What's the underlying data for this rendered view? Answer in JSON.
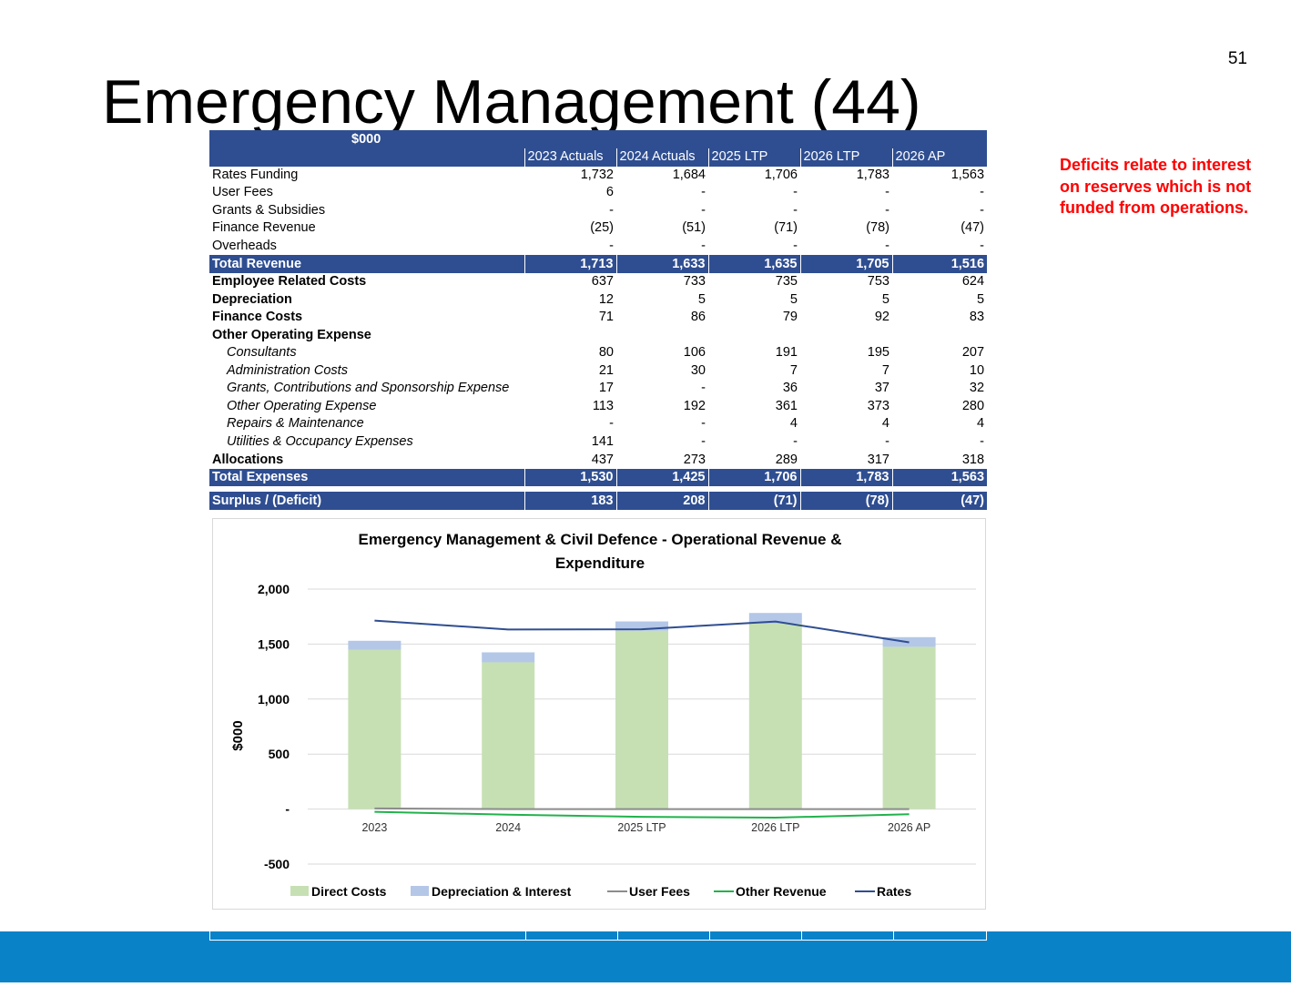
{
  "page_number": "51",
  "title": "Emergency Management (44)",
  "note": "Deficits relate to interest on reserves which is not funded from operations.",
  "table": {
    "unit_label": "$000",
    "columns": [
      "2023 Actuals",
      "2024 Actuals",
      "2025 LTP",
      "2026 LTP",
      "2026 AP"
    ],
    "rows": [
      {
        "label": "Rates Funding",
        "style": "normal",
        "values": [
          "1,732",
          "1,684",
          "1,706",
          "1,783",
          "1,563"
        ]
      },
      {
        "label": "User Fees",
        "style": "normal",
        "values": [
          "6",
          "-",
          "-",
          "-",
          "-"
        ]
      },
      {
        "label": "Grants & Subsidies",
        "style": "normal",
        "values": [
          "-",
          "-",
          "-",
          "-",
          "-"
        ]
      },
      {
        "label": "Finance Revenue",
        "style": "normal",
        "values": [
          "(25)",
          "(51)",
          "(71)",
          "(78)",
          "(47)"
        ]
      },
      {
        "label": "Overheads",
        "style": "normal",
        "values": [
          "-",
          "-",
          "-",
          "-",
          "-"
        ]
      },
      {
        "label": "Total Revenue",
        "style": "total",
        "values": [
          "1,713",
          "1,633",
          "1,635",
          "1,705",
          "1,516"
        ]
      },
      {
        "label": "Employee Related Costs",
        "style": "bold",
        "values": [
          "637",
          "733",
          "735",
          "753",
          "624"
        ]
      },
      {
        "label": "Depreciation",
        "style": "bold",
        "values": [
          "12",
          "5",
          "5",
          "5",
          "5"
        ]
      },
      {
        "label": "Finance Costs",
        "style": "bold",
        "values": [
          "71",
          "86",
          "79",
          "92",
          "83"
        ]
      },
      {
        "label": "Other Operating  Expense",
        "style": "bold",
        "values": [
          "",
          "",
          "",
          "",
          ""
        ]
      },
      {
        "label": "Consultants",
        "style": "sub",
        "values": [
          "80",
          "106",
          "191",
          "195",
          "207"
        ]
      },
      {
        "label": "Administration Costs",
        "style": "sub",
        "values": [
          "21",
          "30",
          "7",
          "7",
          "10"
        ]
      },
      {
        "label": "Grants, Contributions and Sponsorship Expense",
        "style": "sub",
        "values": [
          "17",
          "-",
          "36",
          "37",
          "32"
        ]
      },
      {
        "label": "Other Operating Expense",
        "style": "sub",
        "values": [
          "113",
          "192",
          "361",
          "373",
          "280"
        ]
      },
      {
        "label": "Repairs & Maintenance",
        "style": "sub",
        "values": [
          "-",
          "-",
          "4",
          "4",
          "4"
        ]
      },
      {
        "label": "Utilities & Occupancy Expenses",
        "style": "sub",
        "values": [
          "141",
          "-",
          "-",
          "-",
          "-"
        ]
      },
      {
        "label": "Allocations",
        "style": "bold",
        "values": [
          "437",
          "273",
          "289",
          "317",
          "318"
        ]
      },
      {
        "label": "Total Expenses",
        "style": "total",
        "values": [
          "1,530",
          "1,425",
          "1,706",
          "1,783",
          "1,563"
        ]
      },
      {
        "label": "",
        "style": "gap",
        "values": [
          "",
          "",
          "",
          "",
          ""
        ]
      },
      {
        "label": "Surplus / (Deficit)",
        "style": "total",
        "values": [
          "183",
          "208",
          "(71)",
          "(78)",
          "(47)"
        ]
      }
    ]
  },
  "chart_data": {
    "type": "bar",
    "title": "Emergency Management & Civil Defence - Operational Revenue & Expenditure",
    "ylabel": "$000",
    "ylim": [
      -500,
      2000
    ],
    "ytick_values": [
      2000,
      1500,
      1000,
      500,
      0,
      -500
    ],
    "ytick_labels": [
      "2,000",
      "1,500",
      "1,000",
      "500",
      "-",
      "-500"
    ],
    "categories": [
      "2023",
      "2024",
      "2025 LTP",
      "2026 LTP",
      "2026 AP"
    ],
    "series": [
      {
        "name": "Direct Costs",
        "kind": "bar-stacked",
        "color": "#c6e0b4",
        "values": [
          1447,
          1334,
          1622,
          1686,
          1475
        ]
      },
      {
        "name": "Depreciation & Interest",
        "kind": "bar-stacked",
        "color": "#b4c7e7",
        "values": [
          83,
          91,
          84,
          97,
          88
        ]
      },
      {
        "name": "User Fees",
        "kind": "line",
        "color": "#8c8c8c",
        "values": [
          6,
          0,
          0,
          0,
          0
        ]
      },
      {
        "name": "Other Revenue",
        "kind": "line",
        "color": "#22b24c",
        "values": [
          -25,
          -51,
          -71,
          -78,
          -47
        ]
      },
      {
        "name": "Rates",
        "kind": "line",
        "color": "#2f4e91",
        "values": [
          1713,
          1633,
          1635,
          1705,
          1516
        ]
      }
    ],
    "grid": true,
    "legend": "bottom"
  }
}
